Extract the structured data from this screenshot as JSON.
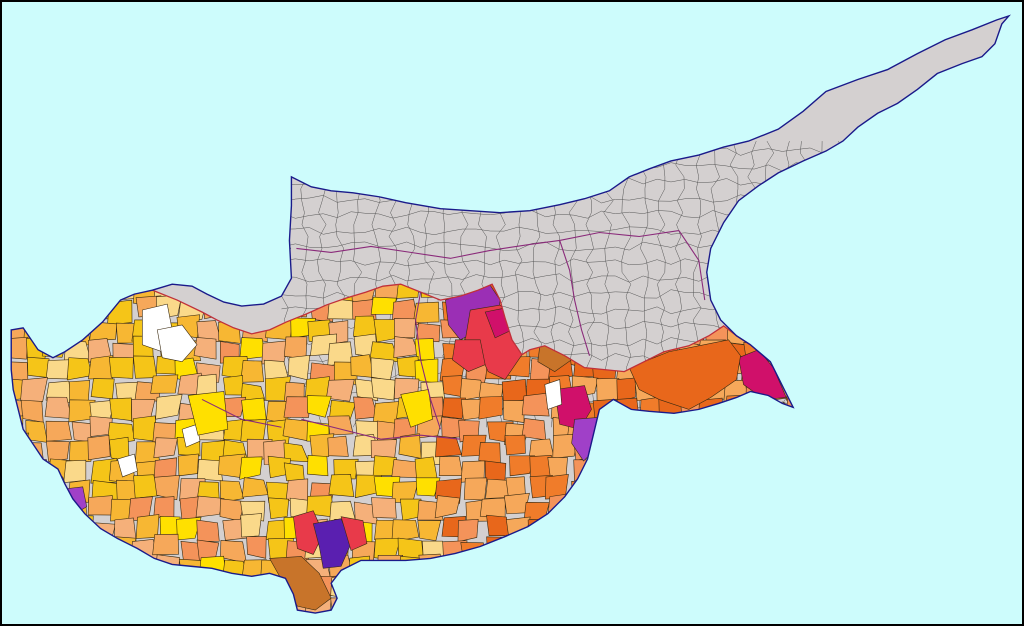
{
  "map": {
    "background_color": "#cdfcfc",
    "border_color": "#000000",
    "north_fill": "#d4d0d0",
    "north_lines": "#555555",
    "district_line_color": "#8a2a7a",
    "green_line_color": "#c0303a",
    "coast_color": "#1a1a8a",
    "palette": [
      "#ffe000",
      "#f5c518",
      "#f7b733",
      "#f6a85a",
      "#f4935a",
      "#f07c2a",
      "#e8671b",
      "#f5b07a",
      "#fad98a",
      "#f0e68c"
    ],
    "hotspot_colors": {
      "magenta": "#d0106a",
      "purple": "#9b2fb5",
      "red": "#e83a4a",
      "violet": "#a040c8",
      "indigo": "#5a1fb0",
      "white": "#ffffff",
      "brown": "#c8742a"
    }
  }
}
